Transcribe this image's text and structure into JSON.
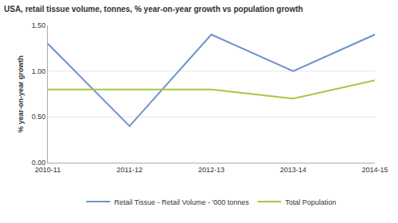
{
  "chart_data": {
    "type": "line",
    "title": "USA, retail tissue volume, tonnes, % year-on-year growth vs population growth",
    "y_label": "% year-on-year growth",
    "categories": [
      "2010-11",
      "2011-12",
      "2012-13",
      "2013-14",
      "2014-15"
    ],
    "series": [
      {
        "name": "Retail Tissue - Retail Volume - '000 tonnes",
        "color": "#6d93c7",
        "values": [
          1.3,
          0.4,
          1.4,
          1.0,
          1.4
        ]
      },
      {
        "name": "Total Population",
        "color": "#a3c940",
        "values": [
          0.8,
          0.8,
          0.8,
          0.7,
          0.9
        ]
      }
    ],
    "ylim": [
      0,
      1.5
    ],
    "yticks": [
      {
        "value": 0,
        "label": "0.00"
      },
      {
        "value": 0.5,
        "label": "0.50"
      },
      {
        "value": 1,
        "label": "1.00"
      },
      {
        "value": 1.5,
        "label": "1.50"
      }
    ],
    "grid": true,
    "legend": "bottom"
  }
}
